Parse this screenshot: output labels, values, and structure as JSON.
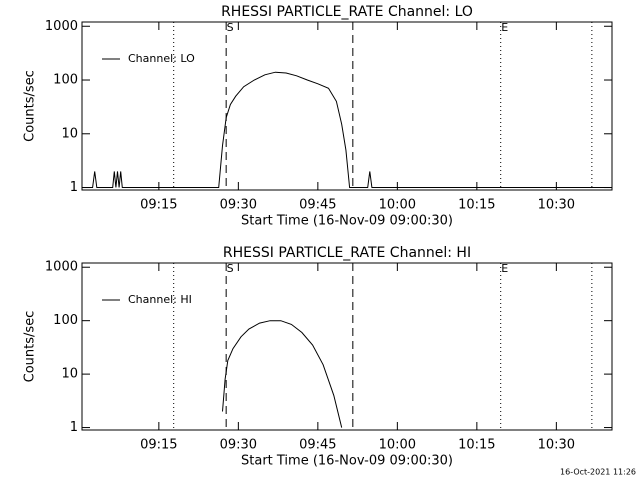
{
  "chart_data": [
    {
      "type": "line",
      "title": "RHESSI PARTICLE_RATE Channel: LO",
      "x_label": "Start Time (16-Nov-09 09:00:30)",
      "y_label": "Counts/sec",
      "x": [
        0.5,
        2.5,
        2.9,
        3.3,
        6.3,
        6.6,
        6.9,
        7.2,
        7.5,
        7.8,
        8.1,
        8.4,
        26.3,
        27,
        27.7,
        28.5,
        29.5,
        31,
        33,
        35,
        37,
        39,
        41,
        43,
        45,
        47,
        48.5,
        49.5,
        50.3,
        51,
        54.4,
        54.8,
        55.2,
        100.5
      ],
      "series": [
        {
          "name": "Channel: LO",
          "color": "#000000",
          "values": [
            1,
            1,
            2,
            1,
            1,
            2,
            1,
            2,
            1,
            2,
            1,
            1,
            1,
            6,
            20,
            35,
            50,
            75,
            100,
            125,
            140,
            135,
            120,
            100,
            85,
            70,
            40,
            15,
            5,
            1,
            1,
            2,
            1,
            1
          ]
        }
      ],
      "xlim": [
        0.5,
        100.5
      ],
      "xticks": [
        {
          "value": 15,
          "label": "09:15"
        },
        {
          "value": 30,
          "label": "09:30"
        },
        {
          "value": 45,
          "label": "09:45"
        },
        {
          "value": 60,
          "label": "10:00"
        },
        {
          "value": 75,
          "label": "10:15"
        },
        {
          "value": 90,
          "label": "10:30"
        }
      ],
      "ylim": [
        0.9,
        1200
      ],
      "yticks": [
        1,
        10,
        100,
        1000
      ],
      "ylog": true,
      "legend": "top-left",
      "vlines": [
        {
          "x": 17.8,
          "style": "dotted"
        },
        {
          "x": 27.7,
          "style": "dashed"
        },
        {
          "x": 51.6,
          "style": "dashed"
        },
        {
          "x": 79.5,
          "style": "dotted"
        },
        {
          "x": 96.7,
          "style": "dotted"
        }
      ],
      "annotations": [
        {
          "text": "S",
          "x": 27.7
        },
        {
          "text": "E",
          "x": 79.5
        }
      ]
    },
    {
      "type": "line",
      "title": "RHESSI PARTICLE_RATE Channel: HI",
      "x_label": "Start Time (16-Nov-09 09:00:30)",
      "y_label": "Counts/sec",
      "x": [
        27,
        27.5,
        28,
        29,
        30.5,
        32,
        34,
        36,
        38,
        40,
        42,
        44,
        46,
        48,
        49.5
      ],
      "series": [
        {
          "name": "Channel: HI",
          "color": "#000000",
          "values": [
            2,
            8,
            18,
            30,
            50,
            70,
            90,
            100,
            100,
            85,
            60,
            35,
            15,
            4,
            1
          ]
        }
      ],
      "xlim": [
        0.5,
        100.5
      ],
      "xticks": [
        {
          "value": 15,
          "label": "09:15"
        },
        {
          "value": 30,
          "label": "09:30"
        },
        {
          "value": 45,
          "label": "09:45"
        },
        {
          "value": 60,
          "label": "10:00"
        },
        {
          "value": 75,
          "label": "10:15"
        },
        {
          "value": 90,
          "label": "10:30"
        }
      ],
      "ylim": [
        0.9,
        1200
      ],
      "yticks": [
        1,
        10,
        100,
        1000
      ],
      "ylog": true,
      "legend": "top-left",
      "vlines": [
        {
          "x": 17.8,
          "style": "dotted"
        },
        {
          "x": 27.7,
          "style": "dashed"
        },
        {
          "x": 51.6,
          "style": "dashed"
        },
        {
          "x": 79.5,
          "style": "dotted"
        },
        {
          "x": 96.7,
          "style": "dotted"
        }
      ],
      "annotations": [
        {
          "text": "S",
          "x": 27.7
        },
        {
          "text": "E",
          "x": 79.5
        }
      ]
    }
  ],
  "footer": "16-Oct-2021 11:26"
}
